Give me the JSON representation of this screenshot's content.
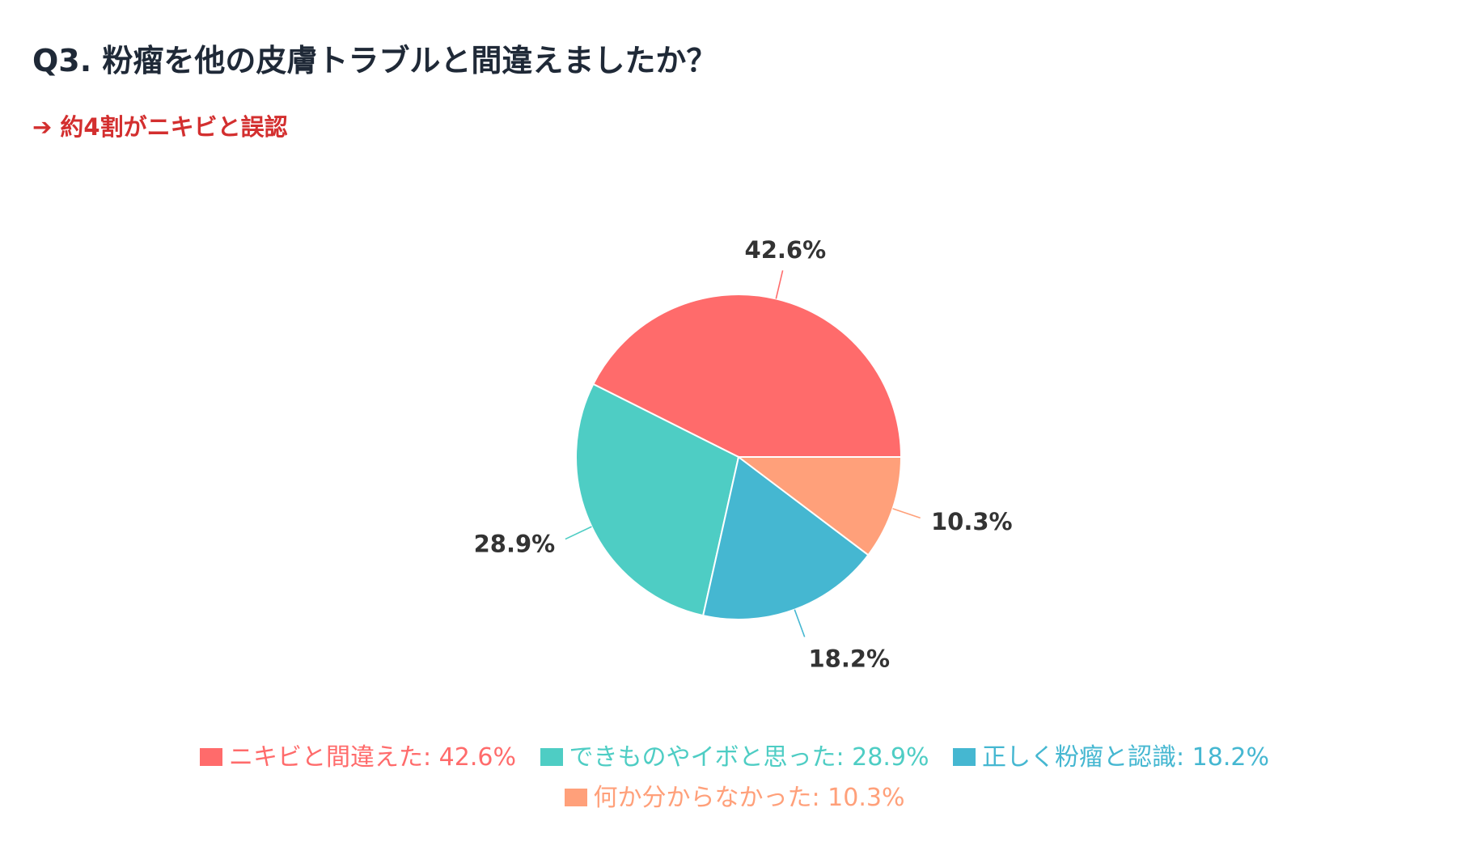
{
  "header": {
    "title": "Q3. 粉瘤を他の皮膚トラブルと間違えましたか？",
    "subtitle": "➔ 約4割がニキビと誤認"
  },
  "chart_data": {
    "type": "pie",
    "slices": [
      {
        "label": "ニキビと間違えた",
        "value": 42.6,
        "value_label": "42.6%",
        "legend_text": "ニキビと間違えた: 42.6%",
        "color": "#FF6B6B"
      },
      {
        "label": "できものやイボと思った",
        "value": 28.9,
        "value_label": "28.9%",
        "legend_text": "できものやイボと思った: 28.9%",
        "color": "#4ECDC4"
      },
      {
        "label": "正しく粉瘤と認識",
        "value": 18.2,
        "value_label": "18.2%",
        "legend_text": "正しく粉瘤と認識: 18.2%",
        "color": "#45B7D1"
      },
      {
        "label": "何か分からなかった",
        "value": 10.3,
        "value_label": "10.3%",
        "legend_text": "何か分からなかった: 10.3%",
        "color": "#FFA07A"
      }
    ],
    "legend_position": "bottom"
  }
}
